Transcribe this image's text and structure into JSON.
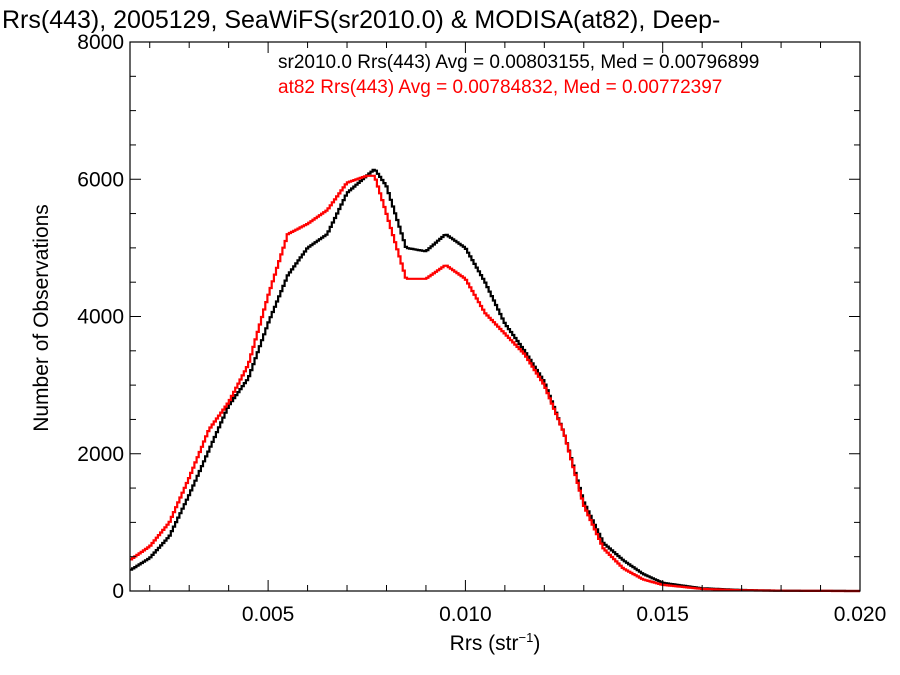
{
  "chart_data": {
    "type": "line",
    "title": "Rrs(443), 2005129, SeaWiFS(sr2010.0) & MODISA(at82), Deep-",
    "xlabel": "Rrs (str",
    "xlabel_sup": "−1",
    "xlabel_close": ")",
    "ylabel": "Number of Observations",
    "xlim": [
      0.0015,
      0.02
    ],
    "ylim": [
      0,
      8000
    ],
    "x_ticks": [
      0.005,
      0.01,
      0.015,
      0.02
    ],
    "x_tick_labels": [
      "0.005",
      "0.010",
      "0.015",
      "0.020"
    ],
    "y_ticks": [
      0,
      2000,
      4000,
      6000,
      8000
    ],
    "y_tick_labels": [
      "0",
      "2000",
      "4000",
      "6000",
      "8000"
    ],
    "legend_placement": "top-right",
    "series": [
      {
        "name": "sr2010.0 Rrs(443) Avg = 0.00803155, Med = 0.00796899",
        "color": "#000000",
        "points": [
          [
            0.0015,
            300
          ],
          [
            0.002,
            480
          ],
          [
            0.0025,
            800
          ],
          [
            0.003,
            1400
          ],
          [
            0.0035,
            2050
          ],
          [
            0.004,
            2700
          ],
          [
            0.0045,
            3100
          ],
          [
            0.005,
            3900
          ],
          [
            0.0055,
            4600
          ],
          [
            0.006,
            5000
          ],
          [
            0.0065,
            5200
          ],
          [
            0.007,
            5800
          ],
          [
            0.0075,
            6050
          ],
          [
            0.0077,
            6150
          ],
          [
            0.008,
            5900
          ],
          [
            0.0085,
            5000
          ],
          [
            0.009,
            4950
          ],
          [
            0.0095,
            5200
          ],
          [
            0.01,
            5000
          ],
          [
            0.0105,
            4500
          ],
          [
            0.011,
            3900
          ],
          [
            0.0115,
            3500
          ],
          [
            0.012,
            3050
          ],
          [
            0.0125,
            2300
          ],
          [
            0.013,
            1300
          ],
          [
            0.0135,
            700
          ],
          [
            0.014,
            450
          ],
          [
            0.0145,
            250
          ],
          [
            0.015,
            120
          ],
          [
            0.016,
            40
          ],
          [
            0.017,
            15
          ],
          [
            0.018,
            5
          ],
          [
            0.019,
            2
          ],
          [
            0.02,
            0
          ]
        ]
      },
      {
        "name": "at82 Rrs(443) Avg = 0.00784832, Med = 0.00772397",
        "color": "#ff0000",
        "points": [
          [
            0.0015,
            450
          ],
          [
            0.002,
            650
          ],
          [
            0.0025,
            1000
          ],
          [
            0.003,
            1650
          ],
          [
            0.0035,
            2350
          ],
          [
            0.004,
            2750
          ],
          [
            0.0045,
            3300
          ],
          [
            0.005,
            4300
          ],
          [
            0.0055,
            5200
          ],
          [
            0.006,
            5350
          ],
          [
            0.0065,
            5550
          ],
          [
            0.007,
            5950
          ],
          [
            0.0075,
            6050
          ],
          [
            0.0077,
            6050
          ],
          [
            0.008,
            5500
          ],
          [
            0.0085,
            4550
          ],
          [
            0.009,
            4550
          ],
          [
            0.0095,
            4750
          ],
          [
            0.01,
            4550
          ],
          [
            0.0105,
            4050
          ],
          [
            0.011,
            3750
          ],
          [
            0.0115,
            3450
          ],
          [
            0.012,
            3000
          ],
          [
            0.0125,
            2300
          ],
          [
            0.013,
            1250
          ],
          [
            0.0135,
            620
          ],
          [
            0.014,
            330
          ],
          [
            0.0145,
            170
          ],
          [
            0.015,
            90
          ],
          [
            0.016,
            30
          ],
          [
            0.017,
            10
          ],
          [
            0.018,
            4
          ],
          [
            0.019,
            1
          ],
          [
            0.02,
            0
          ]
        ]
      }
    ]
  }
}
